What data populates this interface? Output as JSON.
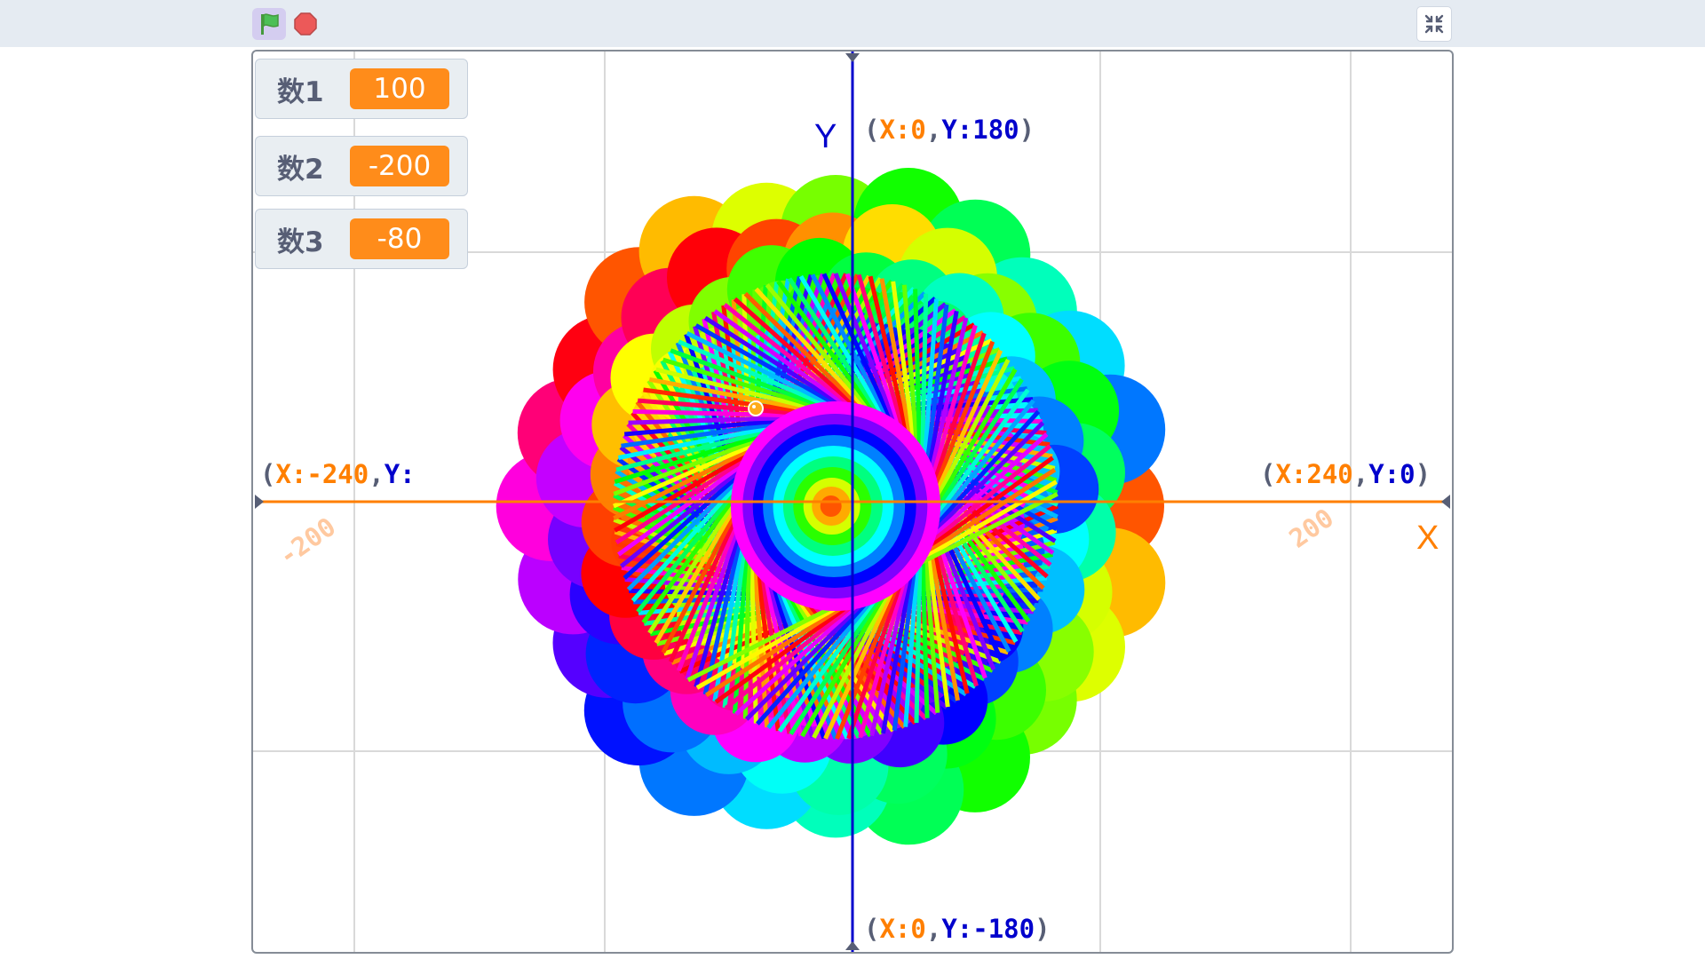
{
  "toolbar": {
    "green_flag_icon": "green-flag-icon",
    "stop_icon": "stop-sign-icon",
    "fullscreen_icon": "exit-fullscreen-icon"
  },
  "monitors": [
    {
      "label": "数1",
      "value": "100"
    },
    {
      "label": "数2",
      "value": "-200"
    },
    {
      "label": "数3",
      "value": "-80"
    }
  ],
  "axes": {
    "y_name": "Y",
    "x_name": "X",
    "top": {
      "open": "(",
      "xk": "X:",
      "xv": "0",
      "sep": ",",
      "yk": "Y:",
      "yv": "180",
      "close": ")"
    },
    "bottom": {
      "open": "(",
      "xk": "X:",
      "xv": "0",
      "sep": ",",
      "yk": "Y:",
      "yv": "-180",
      "close": ")"
    },
    "left": {
      "open": "(",
      "xk": "X:",
      "xv": "-240",
      "sep": ",",
      "yk": "Y:"
    },
    "right": {
      "open": "(",
      "xk": "X:",
      "xv": "240",
      "sep": ",",
      "yk": "Y:",
      "yv": "0",
      "close": ")"
    },
    "tick_neg": "-200",
    "tick_pos": "200"
  },
  "colors": {
    "x_axis": "#ff7f00",
    "y_axis": "#0000cc",
    "grid": "#d9d9d9",
    "monitor_value_bg": "#ff8c1a"
  }
}
